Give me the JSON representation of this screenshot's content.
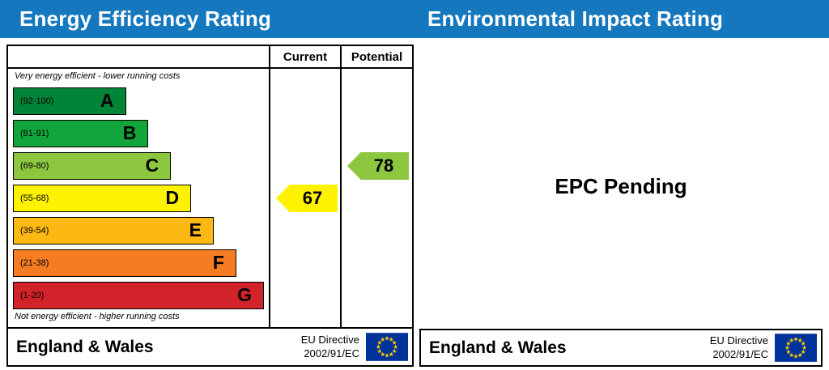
{
  "colors": {
    "header_blue": "#1577be",
    "flag_field": "#003399",
    "flag_stars": "#ffcc00"
  },
  "header": {
    "left_title": "Energy Efficiency Rating",
    "right_title": "Environmental Impact Rating"
  },
  "chart_data": {
    "type": "bar",
    "title": "Energy Efficiency Rating",
    "columns": {
      "current": "Current",
      "potential": "Potential"
    },
    "top_caption": "Very energy efficient - lower running costs",
    "bottom_caption": "Not energy efficient - higher running costs",
    "bands": [
      {
        "letter": "A",
        "range": "(92-100)",
        "color": "#008437",
        "width_pct": 45
      },
      {
        "letter": "B",
        "range": "(81-91)",
        "color": "#12a53c",
        "width_pct": 54
      },
      {
        "letter": "C",
        "range": "(69-80)",
        "color": "#8dc63f",
        "width_pct": 63
      },
      {
        "letter": "D",
        "range": "(55-68)",
        "color": "#fff200",
        "width_pct": 71
      },
      {
        "letter": "E",
        "range": "(39-54)",
        "color": "#fcb813",
        "width_pct": 80
      },
      {
        "letter": "F",
        "range": "(21-38)",
        "color": "#f57c21",
        "width_pct": 89
      },
      {
        "letter": "G",
        "range": "(1-20)",
        "color": "#d2232a",
        "width_pct": 100
      }
    ],
    "current": {
      "value": "67",
      "band_index": 3,
      "color": "#fff200"
    },
    "potential": {
      "value": "78",
      "band_index": 2,
      "color": "#8dc63f"
    }
  },
  "footer": {
    "region": "England & Wales",
    "directive_line1": "EU Directive",
    "directive_line2": "2002/91/EC"
  },
  "right_panel": {
    "message": "EPC Pending"
  }
}
